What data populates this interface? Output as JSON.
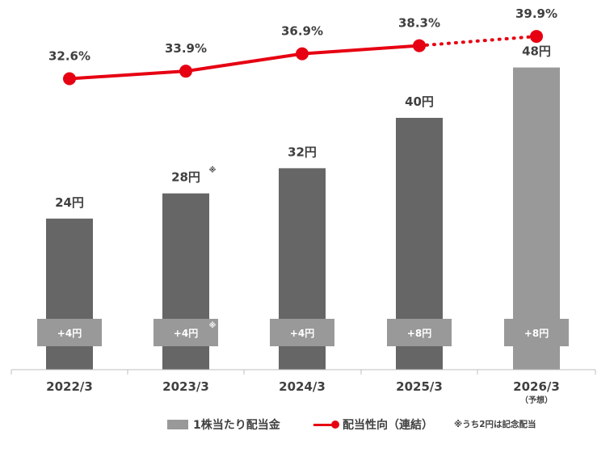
{
  "chart_data": {
    "type": "bar",
    "categories": [
      "2022/3",
      "2023/3",
      "2024/3",
      "2025/3",
      "2026/3"
    ],
    "category_sublabels": [
      "",
      "",
      "",
      "",
      "（予想）"
    ],
    "series": [
      {
        "name": "1株当たり配当金",
        "type": "bar",
        "values": [
          24,
          28,
          32,
          40,
          48
        ],
        "value_labels": [
          "24円",
          "28円",
          "32円",
          "40円",
          "48円"
        ],
        "value_label_marks": [
          "",
          "※",
          "",
          "",
          ""
        ],
        "bar_colors": [
          "#666666",
          "#666666",
          "#666666",
          "#666666",
          "#999999"
        ]
      },
      {
        "name": "配当性向（連結）",
        "type": "line",
        "values": [
          32.6,
          33.9,
          36.9,
          38.3,
          39.9
        ],
        "value_labels": [
          "32.6%",
          "33.9%",
          "36.9%",
          "38.3%",
          "39.9%"
        ],
        "dotted_from_index": 3,
        "color": "#e60012"
      }
    ],
    "increase_labels": [
      "+4円",
      "+4円",
      "+4円",
      "+8円",
      "+8円"
    ],
    "increase_label_marks": [
      "",
      "※",
      "",
      "",
      ""
    ],
    "ylim_bars": [
      0,
      50
    ],
    "ylim_line": [
      20,
      42
    ],
    "legend_position": "bottom"
  },
  "legend": {
    "bar_label": "1株当たり配当金",
    "line_label": "配当性向（連結）",
    "note": "※うち2円は記念配当"
  }
}
